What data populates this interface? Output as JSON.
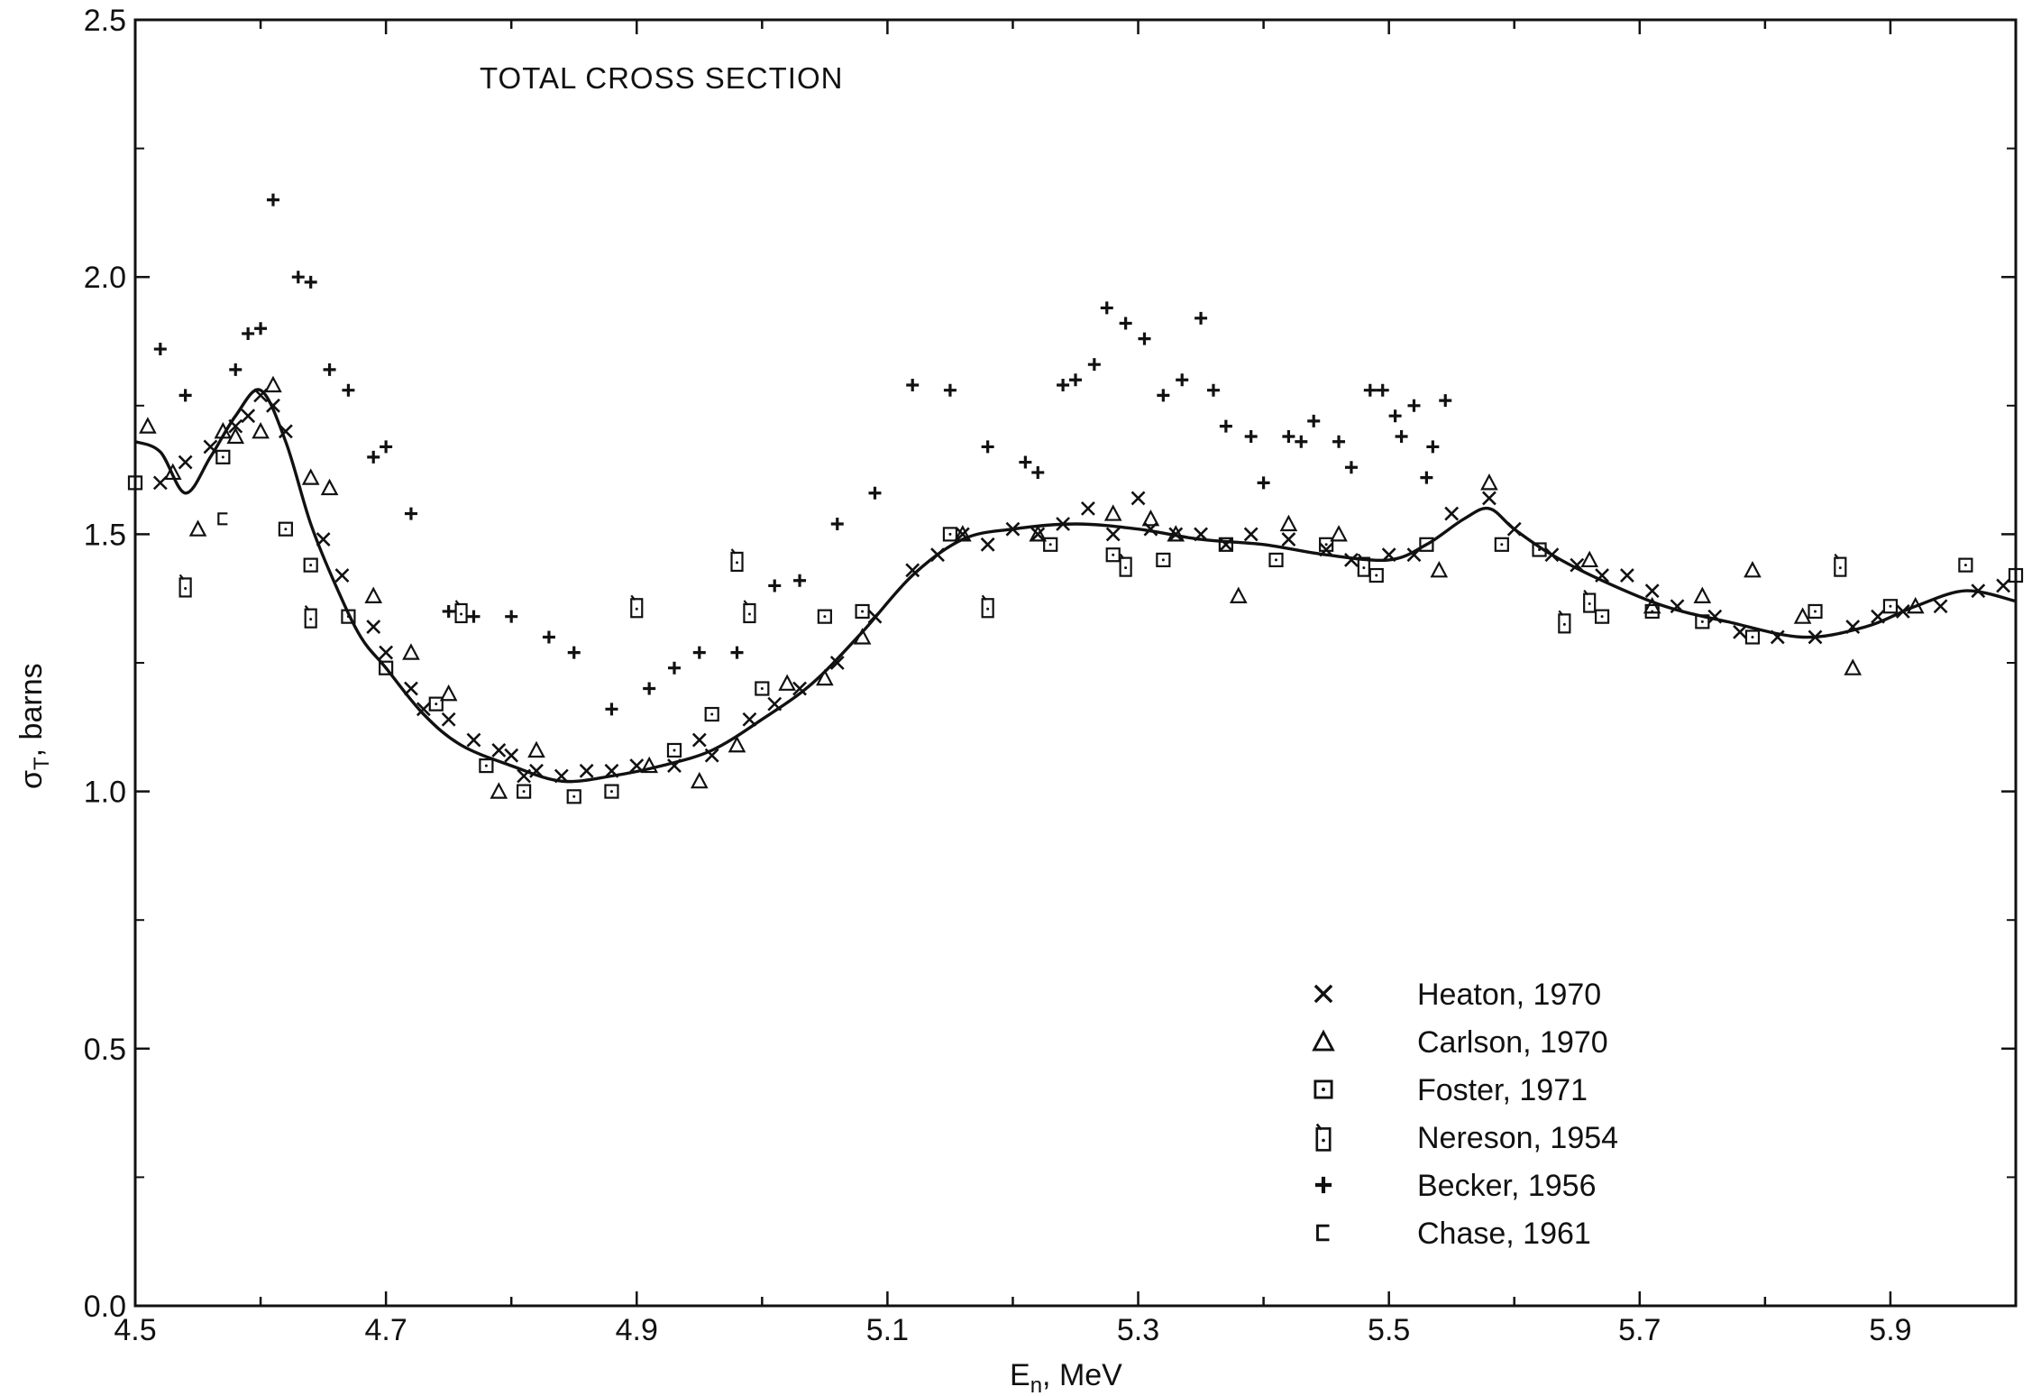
{
  "chart_data": {
    "type": "scatter",
    "title": "TOTAL CROSS SECTION",
    "xlabel_main": "E",
    "xlabel_sub": "n",
    "xlabel_unit": ",  MeV",
    "ylabel_main": "σ",
    "ylabel_sub": "T",
    "ylabel_unit": ",  barns",
    "xlim": [
      4.5,
      6.0
    ],
    "ylim": [
      0.0,
      2.5
    ],
    "xticks": [
      "4.5",
      "4.7",
      "4.9",
      "5.1",
      "5.3",
      "5.5",
      "5.7",
      "5.9"
    ],
    "yticks": [
      "0.0",
      "0.5",
      "1.0",
      "1.5",
      "2.0",
      "2.5"
    ],
    "grid": false,
    "legend_position": "bottom-right",
    "curve": {
      "x": [
        4.5,
        4.52,
        4.54,
        4.56,
        4.58,
        4.6,
        4.62,
        4.64,
        4.66,
        4.68,
        4.7,
        4.73,
        4.76,
        4.8,
        4.84,
        4.88,
        4.92,
        4.96,
        5.0,
        5.04,
        5.08,
        5.12,
        5.16,
        5.2,
        5.25,
        5.3,
        5.35,
        5.4,
        5.45,
        5.5,
        5.53,
        5.56,
        5.58,
        5.6,
        5.63,
        5.67,
        5.72,
        5.77,
        5.83,
        5.88,
        5.92,
        5.96,
        6.0
      ],
      "y": [
        1.68,
        1.66,
        1.58,
        1.65,
        1.73,
        1.78,
        1.68,
        1.52,
        1.4,
        1.3,
        1.24,
        1.15,
        1.09,
        1.05,
        1.02,
        1.03,
        1.05,
        1.08,
        1.14,
        1.21,
        1.31,
        1.42,
        1.49,
        1.51,
        1.52,
        1.51,
        1.49,
        1.48,
        1.46,
        1.45,
        1.48,
        1.53,
        1.55,
        1.51,
        1.46,
        1.41,
        1.36,
        1.33,
        1.3,
        1.32,
        1.36,
        1.39,
        1.37
      ]
    },
    "series": [
      {
        "name": "Heaton, 1970",
        "marker": "x",
        "points": [
          [
            4.52,
            1.6
          ],
          [
            4.54,
            1.64
          ],
          [
            4.56,
            1.67
          ],
          [
            4.58,
            1.71
          ],
          [
            4.59,
            1.73
          ],
          [
            4.6,
            1.77
          ],
          [
            4.61,
            1.75
          ],
          [
            4.62,
            1.7
          ],
          [
            4.65,
            1.49
          ],
          [
            4.665,
            1.42
          ],
          [
            4.69,
            1.32
          ],
          [
            4.7,
            1.27
          ],
          [
            4.72,
            1.2
          ],
          [
            4.73,
            1.16
          ],
          [
            4.75,
            1.14
          ],
          [
            4.77,
            1.1
          ],
          [
            4.79,
            1.08
          ],
          [
            4.8,
            1.07
          ],
          [
            4.81,
            1.03
          ],
          [
            4.82,
            1.04
          ],
          [
            4.84,
            1.03
          ],
          [
            4.86,
            1.04
          ],
          [
            4.88,
            1.04
          ],
          [
            4.9,
            1.05
          ],
          [
            4.93,
            1.05
          ],
          [
            4.95,
            1.1
          ],
          [
            4.96,
            1.07
          ],
          [
            4.99,
            1.14
          ],
          [
            5.01,
            1.17
          ],
          [
            5.03,
            1.2
          ],
          [
            5.06,
            1.25
          ],
          [
            5.09,
            1.34
          ],
          [
            5.12,
            1.43
          ],
          [
            5.14,
            1.46
          ],
          [
            5.16,
            1.5
          ],
          [
            5.18,
            1.48
          ],
          [
            5.2,
            1.51
          ],
          [
            5.22,
            1.5
          ],
          [
            5.24,
            1.52
          ],
          [
            5.26,
            1.55
          ],
          [
            5.28,
            1.5
          ],
          [
            5.3,
            1.57
          ],
          [
            5.31,
            1.51
          ],
          [
            5.33,
            1.5
          ],
          [
            5.35,
            1.5
          ],
          [
            5.37,
            1.48
          ],
          [
            5.39,
            1.5
          ],
          [
            5.42,
            1.49
          ],
          [
            5.45,
            1.47
          ],
          [
            5.47,
            1.45
          ],
          [
            5.5,
            1.46
          ],
          [
            5.52,
            1.46
          ],
          [
            5.55,
            1.54
          ],
          [
            5.58,
            1.57
          ],
          [
            5.6,
            1.51
          ],
          [
            5.63,
            1.46
          ],
          [
            5.65,
            1.44
          ],
          [
            5.67,
            1.42
          ],
          [
            5.69,
            1.42
          ],
          [
            5.71,
            1.39
          ],
          [
            5.73,
            1.36
          ],
          [
            5.76,
            1.34
          ],
          [
            5.78,
            1.31
          ],
          [
            5.81,
            1.3
          ],
          [
            5.84,
            1.3
          ],
          [
            5.87,
            1.32
          ],
          [
            5.89,
            1.34
          ],
          [
            5.91,
            1.35
          ],
          [
            5.94,
            1.36
          ],
          [
            5.97,
            1.39
          ],
          [
            5.99,
            1.4
          ]
        ]
      },
      {
        "name": "Carlson, 1970",
        "marker": "triangle",
        "points": [
          [
            4.51,
            1.71
          ],
          [
            4.53,
            1.62
          ],
          [
            4.55,
            1.51
          ],
          [
            4.57,
            1.7
          ],
          [
            4.58,
            1.69
          ],
          [
            4.6,
            1.7
          ],
          [
            4.61,
            1.79
          ],
          [
            4.64,
            1.61
          ],
          [
            4.655,
            1.59
          ],
          [
            4.69,
            1.38
          ],
          [
            4.72,
            1.27
          ],
          [
            4.75,
            1.19
          ],
          [
            4.79,
            1.0
          ],
          [
            4.82,
            1.08
          ],
          [
            4.91,
            1.05
          ],
          [
            4.95,
            1.02
          ],
          [
            4.98,
            1.09
          ],
          [
            5.02,
            1.21
          ],
          [
            5.05,
            1.22
          ],
          [
            5.08,
            1.3
          ],
          [
            5.16,
            1.5
          ],
          [
            5.22,
            1.5
          ],
          [
            5.28,
            1.54
          ],
          [
            5.31,
            1.53
          ],
          [
            5.33,
            1.5
          ],
          [
            5.38,
            1.38
          ],
          [
            5.42,
            1.52
          ],
          [
            5.46,
            1.5
          ],
          [
            5.54,
            1.43
          ],
          [
            5.58,
            1.6
          ],
          [
            5.66,
            1.45
          ],
          [
            5.71,
            1.36
          ],
          [
            5.75,
            1.38
          ],
          [
            5.79,
            1.43
          ],
          [
            5.83,
            1.34
          ],
          [
            5.87,
            1.24
          ],
          [
            5.92,
            1.36
          ]
        ]
      },
      {
        "name": "Foster, 1971",
        "marker": "square",
        "points": [
          [
            4.5,
            1.6
          ],
          [
            4.57,
            1.65
          ],
          [
            4.62,
            1.51
          ],
          [
            4.64,
            1.44
          ],
          [
            4.67,
            1.34
          ],
          [
            4.7,
            1.24
          ],
          [
            4.74,
            1.17
          ],
          [
            4.78,
            1.05
          ],
          [
            4.81,
            1.0
          ],
          [
            4.85,
            0.99
          ],
          [
            4.88,
            1.0
          ],
          [
            4.93,
            1.08
          ],
          [
            4.96,
            1.15
          ],
          [
            5.0,
            1.2
          ],
          [
            5.05,
            1.34
          ],
          [
            5.08,
            1.35
          ],
          [
            5.15,
            1.5
          ],
          [
            5.23,
            1.48
          ],
          [
            5.28,
            1.46
          ],
          [
            5.32,
            1.45
          ],
          [
            5.37,
            1.48
          ],
          [
            5.41,
            1.45
          ],
          [
            5.45,
            1.48
          ],
          [
            5.49,
            1.42
          ],
          [
            5.53,
            1.48
          ],
          [
            5.59,
            1.48
          ],
          [
            5.62,
            1.47
          ],
          [
            5.67,
            1.34
          ],
          [
            5.71,
            1.35
          ],
          [
            5.75,
            1.33
          ],
          [
            5.79,
            1.3
          ],
          [
            5.84,
            1.35
          ],
          [
            5.9,
            1.36
          ],
          [
            5.96,
            1.44
          ],
          [
            6.0,
            1.42
          ]
        ]
      },
      {
        "name": "Nereson, 1954",
        "marker": "nereson",
        "points": [
          [
            4.54,
            1.4
          ],
          [
            4.64,
            1.34
          ],
          [
            4.76,
            1.35
          ],
          [
            4.9,
            1.36
          ],
          [
            4.98,
            1.45
          ],
          [
            4.99,
            1.35
          ],
          [
            5.18,
            1.36
          ],
          [
            5.29,
            1.44
          ],
          [
            5.48,
            1.44
          ],
          [
            5.64,
            1.33
          ],
          [
            5.66,
            1.37
          ],
          [
            5.86,
            1.44
          ]
        ]
      },
      {
        "name": "Becker, 1956",
        "marker": "plus",
        "points": [
          [
            4.52,
            1.86
          ],
          [
            4.54,
            1.77
          ],
          [
            4.58,
            1.82
          ],
          [
            4.59,
            1.89
          ],
          [
            4.6,
            1.9
          ],
          [
            4.61,
            2.15
          ],
          [
            4.63,
            2.0
          ],
          [
            4.64,
            1.99
          ],
          [
            4.655,
            1.82
          ],
          [
            4.67,
            1.78
          ],
          [
            4.69,
            1.65
          ],
          [
            4.7,
            1.67
          ],
          [
            4.72,
            1.54
          ],
          [
            4.75,
            1.35
          ],
          [
            4.77,
            1.34
          ],
          [
            4.8,
            1.34
          ],
          [
            4.83,
            1.3
          ],
          [
            4.85,
            1.27
          ],
          [
            4.88,
            1.16
          ],
          [
            4.91,
            1.2
          ],
          [
            4.93,
            1.24
          ],
          [
            4.95,
            1.27
          ],
          [
            4.98,
            1.27
          ],
          [
            5.01,
            1.4
          ],
          [
            5.03,
            1.41
          ],
          [
            5.06,
            1.52
          ],
          [
            5.09,
            1.58
          ],
          [
            5.12,
            1.79
          ],
          [
            5.15,
            1.78
          ],
          [
            5.18,
            1.67
          ],
          [
            5.21,
            1.64
          ],
          [
            5.22,
            1.62
          ],
          [
            5.24,
            1.79
          ],
          [
            5.25,
            1.8
          ],
          [
            5.265,
            1.83
          ],
          [
            5.275,
            1.94
          ],
          [
            5.29,
            1.91
          ],
          [
            5.305,
            1.88
          ],
          [
            5.32,
            1.77
          ],
          [
            5.335,
            1.8
          ],
          [
            5.35,
            1.92
          ],
          [
            5.36,
            1.78
          ],
          [
            5.37,
            1.71
          ],
          [
            5.39,
            1.69
          ],
          [
            5.4,
            1.6
          ],
          [
            5.42,
            1.69
          ],
          [
            5.43,
            1.68
          ],
          [
            5.44,
            1.72
          ],
          [
            5.46,
            1.68
          ],
          [
            5.47,
            1.63
          ],
          [
            5.485,
            1.78
          ],
          [
            5.495,
            1.78
          ],
          [
            5.505,
            1.73
          ],
          [
            5.51,
            1.69
          ],
          [
            5.52,
            1.75
          ],
          [
            5.53,
            1.61
          ],
          [
            5.535,
            1.67
          ],
          [
            5.545,
            1.76
          ]
        ]
      },
      {
        "name": "Chase, 1961",
        "marker": "chase",
        "points": [
          [
            4.57,
            1.53
          ]
        ]
      }
    ]
  }
}
